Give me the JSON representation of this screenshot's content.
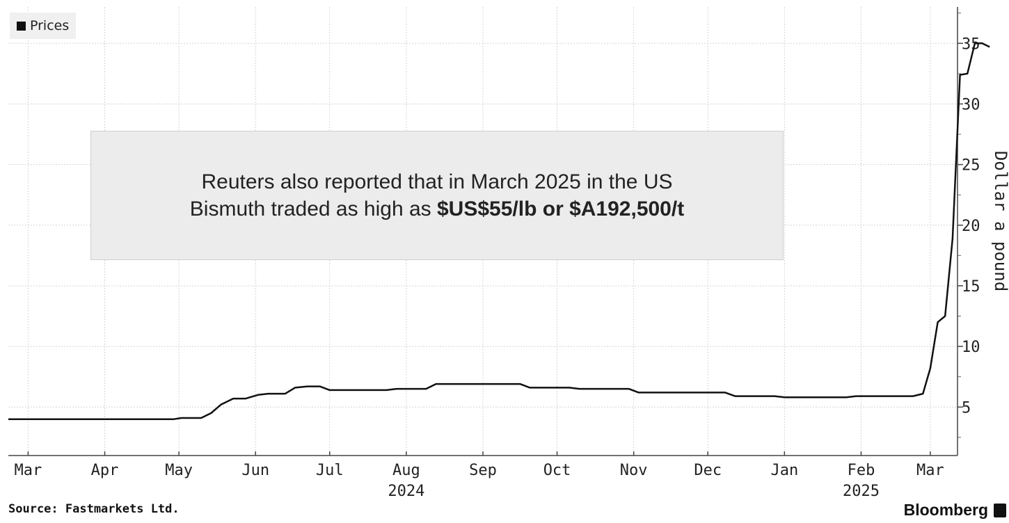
{
  "chart_data": {
    "type": "line",
    "legend": [
      "Prices"
    ],
    "legend_position": "top-left",
    "ylabel": "Dollar a pound",
    "ylim": [
      1,
      38
    ],
    "yticks": [
      5,
      10,
      15,
      20,
      25,
      30,
      35
    ],
    "y_axis_side": "right",
    "grid": true,
    "x_range": [
      "2024-02-22",
      "2025-03-12"
    ],
    "xticks": [
      {
        "date": "2024-03-01",
        "label": "Mar",
        "sub": ""
      },
      {
        "date": "2024-04-01",
        "label": "Apr",
        "sub": ""
      },
      {
        "date": "2024-05-01",
        "label": "May",
        "sub": ""
      },
      {
        "date": "2024-06-01",
        "label": "Jun",
        "sub": ""
      },
      {
        "date": "2024-07-01",
        "label": "Jul",
        "sub": ""
      },
      {
        "date": "2024-08-01",
        "label": "Aug",
        "sub": "2024"
      },
      {
        "date": "2024-09-01",
        "label": "Sep",
        "sub": ""
      },
      {
        "date": "2024-10-01",
        "label": "Oct",
        "sub": ""
      },
      {
        "date": "2024-11-01",
        "label": "Nov",
        "sub": ""
      },
      {
        "date": "2024-12-01",
        "label": "Dec",
        "sub": ""
      },
      {
        "date": "2025-01-01",
        "label": "Jan",
        "sub": ""
      },
      {
        "date": "2025-02-01",
        "label": "Feb",
        "sub": "2025"
      },
      {
        "date": "2025-03-01",
        "label": "Mar",
        "sub": ""
      }
    ],
    "series": [
      {
        "name": "Prices",
        "color": "#111111",
        "points": [
          [
            "2024-02-22",
            4.0
          ],
          [
            "2024-04-29",
            4.0
          ],
          [
            "2024-05-02",
            4.1
          ],
          [
            "2024-05-10",
            4.1
          ],
          [
            "2024-05-14",
            4.5
          ],
          [
            "2024-05-18",
            5.2
          ],
          [
            "2024-05-23",
            5.7
          ],
          [
            "2024-05-28",
            5.7
          ],
          [
            "2024-06-02",
            6.0
          ],
          [
            "2024-06-06",
            6.1
          ],
          [
            "2024-06-13",
            6.1
          ],
          [
            "2024-06-17",
            6.6
          ],
          [
            "2024-06-22",
            6.7
          ],
          [
            "2024-06-27",
            6.7
          ],
          [
            "2024-07-01",
            6.4
          ],
          [
            "2024-07-24",
            6.4
          ],
          [
            "2024-07-28",
            6.5
          ],
          [
            "2024-08-09",
            6.5
          ],
          [
            "2024-08-13",
            6.9
          ],
          [
            "2024-09-16",
            6.9
          ],
          [
            "2024-09-20",
            6.6
          ],
          [
            "2024-10-06",
            6.6
          ],
          [
            "2024-10-10",
            6.5
          ],
          [
            "2024-10-30",
            6.5
          ],
          [
            "2024-11-03",
            6.2
          ],
          [
            "2024-12-08",
            6.2
          ],
          [
            "2024-12-12",
            5.9
          ],
          [
            "2024-12-28",
            5.9
          ],
          [
            "2025-01-01",
            5.8
          ],
          [
            "2025-01-26",
            5.8
          ],
          [
            "2025-01-30",
            5.9
          ],
          [
            "2025-02-22",
            5.9
          ],
          [
            "2025-02-26",
            6.1
          ],
          [
            "2025-03-01",
            8.2
          ],
          [
            "2025-03-04",
            12.0
          ],
          [
            "2025-03-07",
            12.5
          ],
          [
            "2025-03-10",
            18.9
          ],
          [
            "2025-03-13",
            32.4
          ],
          [
            "2025-03-16",
            32.5
          ],
          [
            "2025-03-19",
            35.0
          ],
          [
            "2025-03-22",
            35.0
          ],
          [
            "2025-03-25",
            34.7
          ]
        ]
      }
    ]
  },
  "annotation": {
    "text": "Reuters also reported that in March 2025 in the US Bismuth traded as high as",
    "highlight": "$US$55/lb or $A192,500/t"
  },
  "source": "Source: Fastmarkets Ltd.",
  "brand": "Bloomberg"
}
